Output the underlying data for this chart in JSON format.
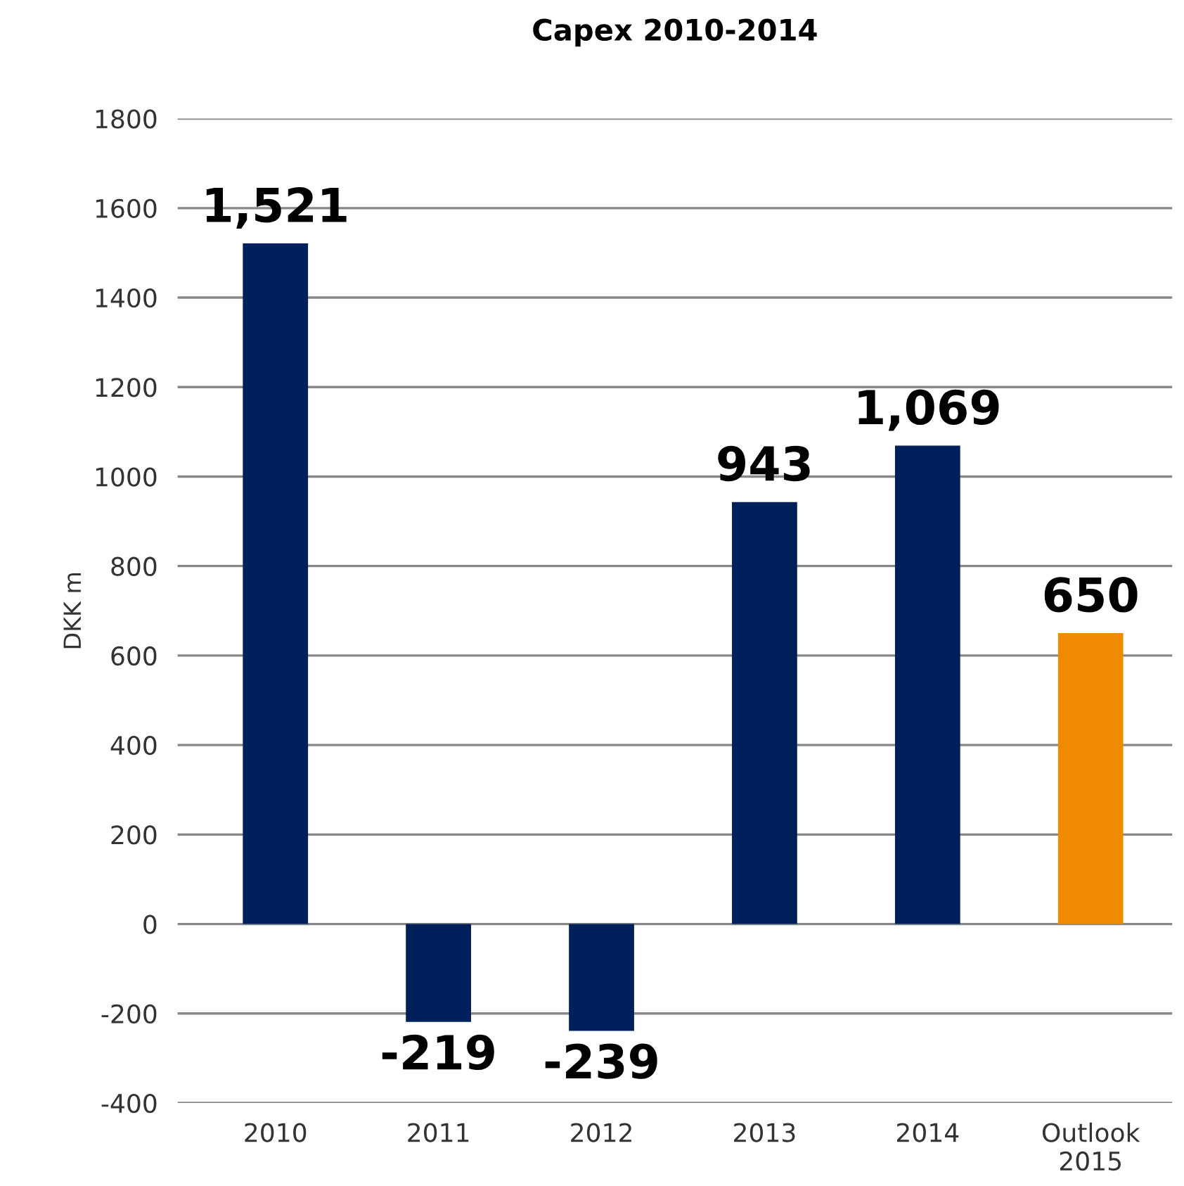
{
  "chart_data": {
    "type": "bar",
    "title": "Capex 2010-2014",
    "ylabel": "DKK m",
    "categories": [
      "2010",
      "2011",
      "2012",
      "2013",
      "2014",
      "Outlook\n2015"
    ],
    "values": [
      1521,
      -219,
      -239,
      943,
      1069,
      650
    ],
    "colors": [
      "#00205b",
      "#00205b",
      "#00205b",
      "#00205b",
      "#00205b",
      "#f08a00"
    ],
    "value_labels": [
      "1,521",
      "-219",
      "-239",
      "943",
      "1,069",
      "650"
    ],
    "ylim": [
      -400,
      1800
    ],
    "yticks": [
      -400,
      -200,
      0,
      200,
      400,
      600,
      800,
      1000,
      1200,
      1400,
      1600,
      1800
    ],
    "grid": "y"
  }
}
